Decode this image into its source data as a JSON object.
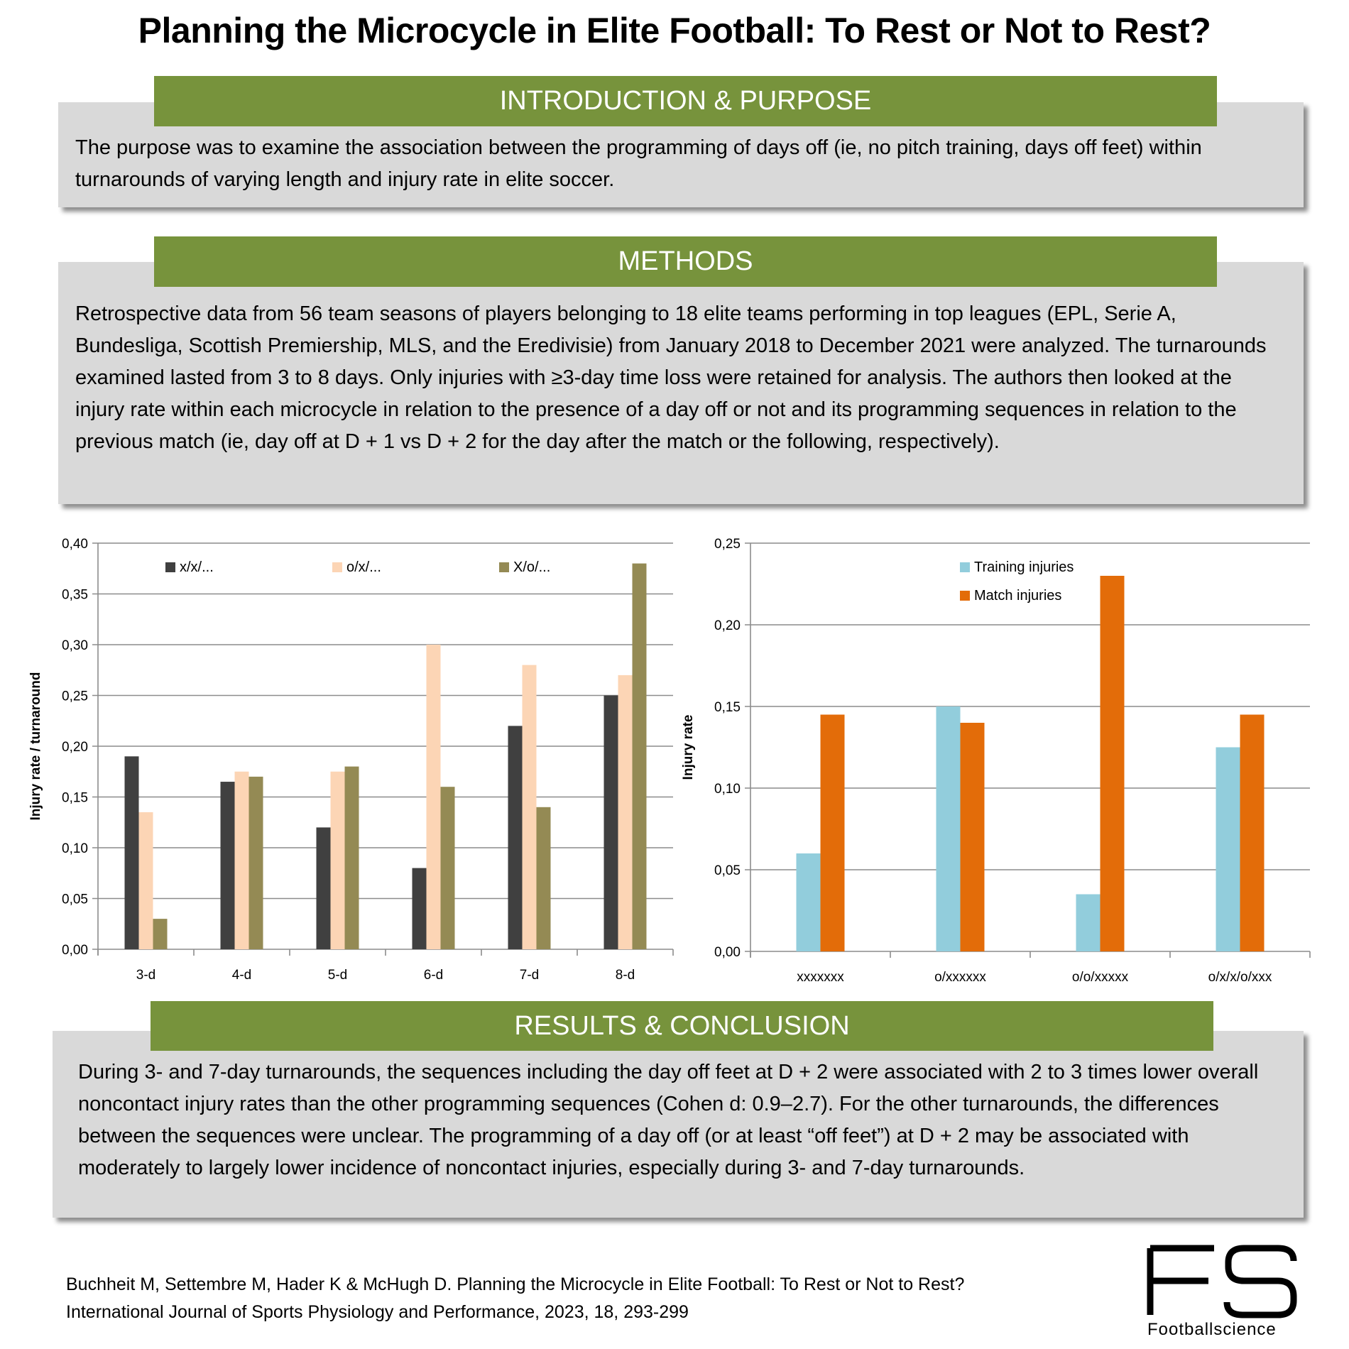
{
  "title": "Planning the Microcycle in Elite Football: To Rest or Not to Rest?",
  "intro": {
    "heading": "INTRODUCTION & PURPOSE",
    "text": "The purpose was to examine the association between the programming of days off (ie, no pitch training, days off feet) within turnarounds of varying length and injury rate in elite soccer."
  },
  "methods": {
    "heading": "METHODS",
    "text": "Retrospective data from 56 team seasons of players belonging to 18 elite teams performing in top leagues (EPL, Serie A, Bundesliga, Scottish Premiership, MLS, and the Eredivisie) from January 2018 to December 2021 were analyzed. The  turnarounds examined lasted from 3 to 8 days. Only injuries with ≥3-day time loss were retained for analysis. The authors then looked at the injury rate within each microcycle in relation to the presence of a day off or not and its programming sequences in relation to the previous match (ie, day off at D + 1 vs D + 2 for the day after the match or the following, respectively)."
  },
  "results": {
    "heading": "RESULTS & CONCLUSION",
    "text": "During 3- and 7-day turnarounds, the sequences including the day off feet at D + 2 were associated with 2 to 3 times lower overall noncontact injury rates than the other programming sequences (Cohen d: 0.9–2.7). For the other turnarounds, the differences between the sequences were unclear. The programming of a day off (or at least “off feet”) at D + 2 may be associated with moderately to largely lower incidence of noncontact injuries, especially during 3- and 7-day turnarounds."
  },
  "footer": {
    "line1": "Buchheit M, Settembre M, Hader K & McHugh D. Planning the Microcycle in Elite Football: To Rest or Not to Rest?",
    "line2": "International Journal of Sports Physiology and Performance, 2023, 18, 293-299"
  },
  "logo": {
    "mark": "FS",
    "name": "Footballscience"
  },
  "colors": {
    "header_green": "#77933c",
    "box_gray": "#d9d9d9"
  },
  "chart_data": [
    {
      "type": "bar",
      "title": "",
      "xlabel": "",
      "ylabel": "Injury rate / turnaround",
      "ylim": [
        0,
        0.4
      ],
      "yticks": [
        "0,00",
        "0,05",
        "0,10",
        "0,15",
        "0,20",
        "0,25",
        "0,30",
        "0,35",
        "0,40"
      ],
      "grid": true,
      "legend": "top",
      "categories": [
        "3-d",
        "4-d",
        "5-d",
        "6-d",
        "7-d",
        "8-d"
      ],
      "series": [
        {
          "name": "x/x/...",
          "color": "#404040",
          "values": [
            0.19,
            0.165,
            0.12,
            0.08,
            0.22,
            0.25
          ]
        },
        {
          "name": "o/x/...",
          "color": "#fcd5b5",
          "values": [
            0.135,
            0.175,
            0.175,
            0.3,
            0.28,
            0.27
          ]
        },
        {
          "name": "X/o/...",
          "color": "#948a54",
          "values": [
            0.03,
            0.17,
            0.18,
            0.16,
            0.14,
            0.38
          ]
        }
      ]
    },
    {
      "type": "bar",
      "title": "",
      "xlabel": "",
      "ylabel": "Injury rate",
      "ylim": [
        0,
        0.25
      ],
      "yticks": [
        "0,00",
        "0,05",
        "0,10",
        "0,15",
        "0,20",
        "0,25"
      ],
      "grid": true,
      "legend": "top-left",
      "categories": [
        "xxxxxxx",
        "o/xxxxxx",
        "o/o/xxxxx",
        "o/x/x/o/xxx"
      ],
      "series": [
        {
          "name": "Training injuries",
          "color": "#92cddc",
          "values": [
            0.06,
            0.15,
            0.035,
            0.125
          ]
        },
        {
          "name": "Match injuries",
          "color": "#e36c09",
          "values": [
            0.145,
            0.14,
            0.23,
            0.145
          ]
        }
      ]
    }
  ]
}
